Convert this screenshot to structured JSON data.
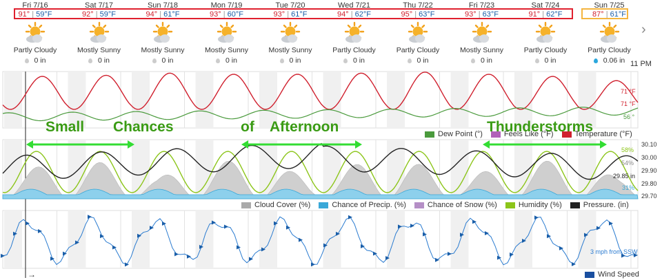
{
  "days": [
    {
      "date": "Fri 7/16",
      "hi": "91°",
      "lo": "59°F",
      "condition": "Partly Cloudy",
      "precip": "0 in"
    },
    {
      "date": "Sat 7/17",
      "hi": "92°",
      "lo": "59°F",
      "condition": "Mostly Sunny",
      "precip": "0 in"
    },
    {
      "date": "Sun 7/18",
      "hi": "94°",
      "lo": "61°F",
      "condition": "Mostly Sunny",
      "precip": "0 in"
    },
    {
      "date": "Mon 7/19",
      "hi": "93°",
      "lo": "60°F",
      "condition": "Mostly Sunny",
      "precip": "0 in"
    },
    {
      "date": "Tue 7/20",
      "hi": "93°",
      "lo": "61°F",
      "condition": "Mostly Sunny",
      "precip": "0 in"
    },
    {
      "date": "Wed 7/21",
      "hi": "94°",
      "lo": "62°F",
      "condition": "Partly Cloudy",
      "precip": "0 in"
    },
    {
      "date": "Thu 7/22",
      "hi": "95°",
      "lo": "63°F",
      "condition": "Partly Cloudy",
      "precip": "0 in"
    },
    {
      "date": "Fri 7/23",
      "hi": "93°",
      "lo": "63°F",
      "condition": "Mostly Sunny",
      "precip": "0 in"
    },
    {
      "date": "Sat 7/24",
      "hi": "91°",
      "lo": "62°F",
      "condition": "Partly Cloudy",
      "precip": "0 in"
    },
    {
      "date": "Sun 7/25",
      "hi": "87°",
      "lo": "61°F",
      "condition": "Partly Cloudy",
      "precip": "0.06 in"
    }
  ],
  "time_label": "11 PM",
  "overlay": {
    "w1": "Small",
    "w2": "Chances",
    "w3": "of",
    "w4": "Afternoon",
    "w5": "Thunderstorms"
  },
  "temp_panel": {
    "legend": [
      "Dew Point (°)",
      "Feels Like (°F)",
      "Temperature (°F)"
    ],
    "colors": {
      "dew": "#4a9a3c",
      "feels": "#b060b8",
      "temp": "#d0202e"
    },
    "labels": {
      "temp": "71 °F",
      "feels": "71 °F",
      "dew": "56 °"
    }
  },
  "mid_panel": {
    "legend": [
      "Cloud Cover (%)",
      "Chance of Precip. (%)",
      "Chance of Snow (%)",
      "Humidity (%)",
      "Pressure. (in)"
    ],
    "colors": {
      "cloud": "#aaaaaa",
      "precip": "#3aa8d8",
      "snow": "#b58fc6",
      "humidity": "#8cc51a",
      "pressure": "#222222"
    },
    "axis": [
      "30.10",
      "30.00",
      "29.90",
      "29.80",
      "29.70"
    ],
    "labels": {
      "humidity": "58%",
      "cloud": "54%",
      "pressure": "29.85 in",
      "precip": "31%"
    }
  },
  "wind_panel": {
    "legend": "Wind Speed",
    "color": "#2a7bd0",
    "label": "3 mph from SSW",
    "arrow": "→"
  }
}
